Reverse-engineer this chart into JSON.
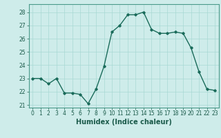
{
  "x": [
    0,
    1,
    2,
    3,
    4,
    5,
    6,
    7,
    8,
    9,
    10,
    11,
    12,
    13,
    14,
    15,
    16,
    17,
    18,
    19,
    20,
    21,
    22,
    23
  ],
  "y": [
    23.0,
    23.0,
    22.6,
    23.0,
    21.9,
    21.9,
    21.8,
    21.1,
    22.2,
    23.9,
    26.5,
    27.0,
    27.8,
    27.8,
    28.0,
    26.7,
    26.4,
    26.4,
    26.5,
    26.4,
    25.3,
    23.5,
    22.2,
    22.1
  ],
  "xlim": [
    -0.5,
    23.5
  ],
  "ylim": [
    20.8,
    28.6
  ],
  "yticks": [
    21,
    22,
    23,
    24,
    25,
    26,
    27,
    28
  ],
  "xticks": [
    0,
    1,
    2,
    3,
    4,
    5,
    6,
    7,
    8,
    9,
    10,
    11,
    12,
    13,
    14,
    15,
    16,
    17,
    18,
    19,
    20,
    21,
    22,
    23
  ],
  "xlabel": "Humidex (Indice chaleur)",
  "line_color": "#1a6b5a",
  "marker": "D",
  "marker_size": 1.8,
  "bg_color": "#ceecea",
  "grid_color": "#a8d8d4",
  "axes_color": "#4a9a8a",
  "label_color": "#1a5a4a",
  "tick_label_size": 5.5,
  "xlabel_size": 7.0,
  "linewidth": 1.0
}
